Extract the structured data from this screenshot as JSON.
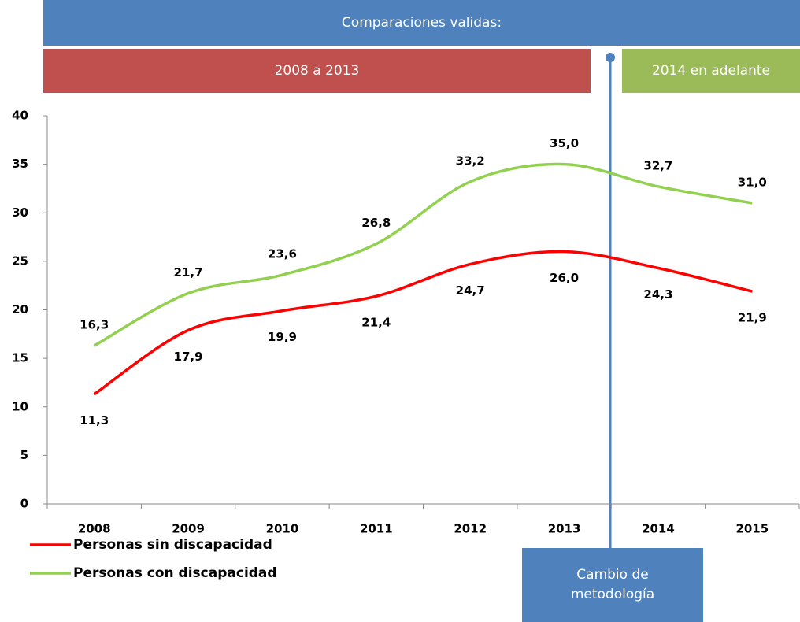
{
  "chart_data": {
    "type": "line",
    "annotations": {
      "header": "Comparaciones validas:",
      "period_before": "2008 a 2013",
      "period_after": "2014 en adelante",
      "method_change": "Cambio de metodología"
    },
    "categories": [
      "2008",
      "2009",
      "2010",
      "2011",
      "2012",
      "2013",
      "2014",
      "2015"
    ],
    "series": [
      {
        "name": "Personas sin discapacidad",
        "color": "#ff0000",
        "values": [
          11.3,
          17.9,
          19.9,
          21.4,
          24.7,
          26.0,
          24.3,
          21.9
        ],
        "value_labels": [
          "11,3",
          "17,9",
          "19,9",
          "21,4",
          "24,7",
          "26,0",
          "24,3",
          "21,9"
        ]
      },
      {
        "name": "Personas con discapacidad",
        "color": "#92d050",
        "values": [
          16.3,
          21.7,
          23.6,
          26.8,
          33.2,
          35.0,
          32.7,
          31.0
        ],
        "value_labels": [
          "16,3",
          "21,7",
          "23,6",
          "26,8",
          "33,2",
          "35,0",
          "32,7",
          "31,0"
        ]
      }
    ],
    "ylim": [
      0,
      40
    ],
    "yticks": [
      0,
      5,
      10,
      15,
      20,
      25,
      30,
      35,
      40
    ],
    "grid": false,
    "legend": "bottom-left"
  }
}
